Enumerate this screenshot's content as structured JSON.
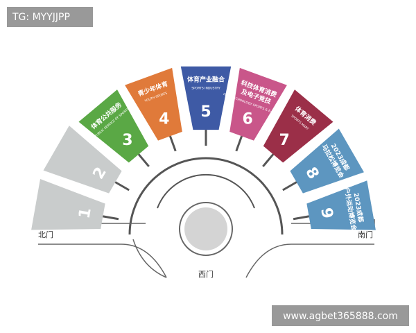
{
  "watermark_top": "TG: MYYJJPP",
  "halls": [
    {
      "number": "1",
      "color": "#c9cccc"
    },
    {
      "number": "2",
      "color": "#c9cccc"
    },
    {
      "number": "3",
      "color": "#5aa845",
      "title": [
        "体育公共服务"
      ],
      "subtitle": "PUBLIC SERVICE OF SPORTS"
    },
    {
      "number": "4",
      "color": "#e07a3a",
      "title": [
        "青少年体育"
      ],
      "subtitle": "YOUTH SPORTS"
    },
    {
      "number": "5",
      "color": "#3e5aa5",
      "title": [
        "体育产业融合"
      ],
      "subtitle": "SPORTS INDUSTRY"
    },
    {
      "number": "6",
      "color": "#c9568a",
      "title": [
        "科技体育消费",
        "及电子竞技"
      ],
      "subtitle": "HIGH TECHNOLOGY SPORTS & E-SPORTS"
    },
    {
      "number": "7",
      "color": "#9b2f48",
      "title": [
        "体育消费"
      ],
      "subtitle": "SPORTS MART"
    },
    {
      "number": "8",
      "color": "#5d96c0",
      "title": [
        "2023成都",
        "马拉松博览会"
      ]
    },
    {
      "number": "9",
      "color": "#5d96c0",
      "title": [
        "2023成都",
        "户外运动博览会"
      ]
    }
  ],
  "gates": {
    "north": "北门",
    "south": "南门",
    "west": "西门"
  },
  "watermark_bottom": "www.agbet365888.com"
}
